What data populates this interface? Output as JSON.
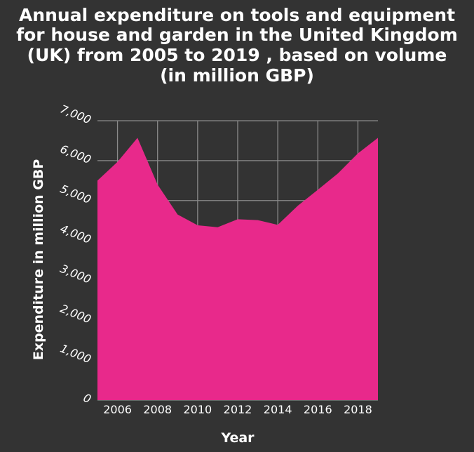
{
  "chart_data": {
    "type": "area",
    "title_lines": [
      "Annual expenditure on tools and equipment",
      "for house and garden in the United Kingdom",
      "(UK) from 2005 to 2019 , based on volume",
      "(in million GBP)"
    ],
    "xlabel": "Year",
    "ylabel": "Expenditure in million GBP",
    "x": [
      2005,
      2006,
      2007,
      2008,
      2009,
      2010,
      2011,
      2012,
      2013,
      2014,
      2015,
      2016,
      2017,
      2018,
      2019
    ],
    "y": [
      5500,
      5970,
      6570,
      5400,
      4650,
      4380,
      4330,
      4530,
      4510,
      4390,
      4870,
      5270,
      5680,
      6180,
      6570
    ],
    "xlim": [
      2005,
      2019
    ],
    "ylim": [
      0,
      7000
    ],
    "x_ticks": [
      2006,
      2008,
      2010,
      2012,
      2014,
      2016,
      2018
    ],
    "y_ticks": [
      0,
      1000,
      2000,
      3000,
      4000,
      5000,
      6000,
      7000
    ],
    "y_tick_labels": [
      "0",
      "1,000",
      "2,000",
      "3,000",
      "4,000",
      "5,000",
      "6,000",
      "7,000"
    ],
    "grid": true,
    "colors": {
      "background": "#333333",
      "area": "#e8298b",
      "grid": "#8a8a8a",
      "text": "#ffffff"
    }
  }
}
